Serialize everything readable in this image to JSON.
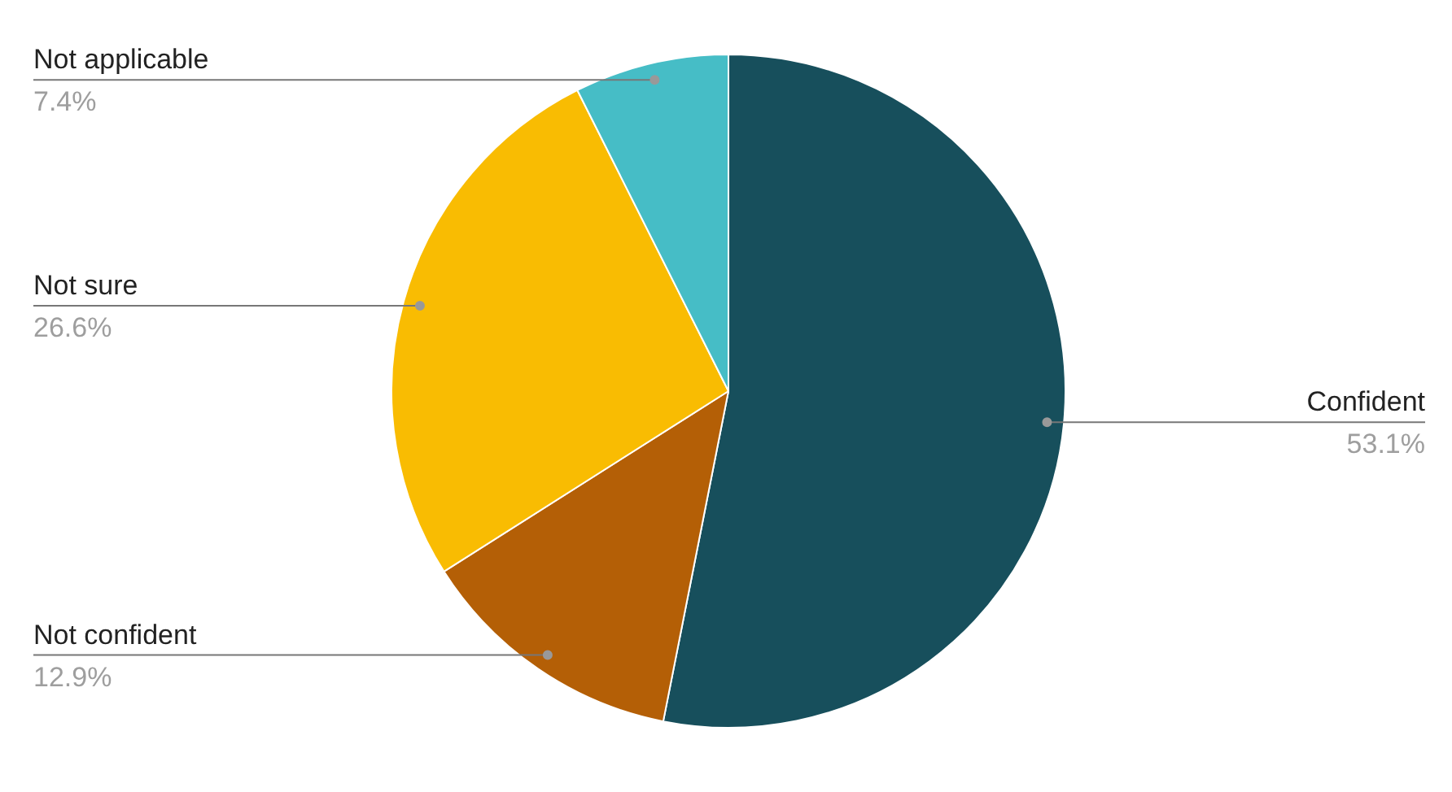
{
  "chart_data": {
    "type": "pie",
    "categories": [
      "Confident",
      "Not confident",
      "Not sure",
      "Not applicable"
    ],
    "values": [
      53.1,
      12.9,
      26.6,
      7.4
    ],
    "colors": [
      "#174f5c",
      "#b45f06",
      "#f9bc02",
      "#46bdc6"
    ],
    "value_labels": [
      "53.1%",
      "12.9%",
      "26.6%",
      "7.4%"
    ]
  }
}
